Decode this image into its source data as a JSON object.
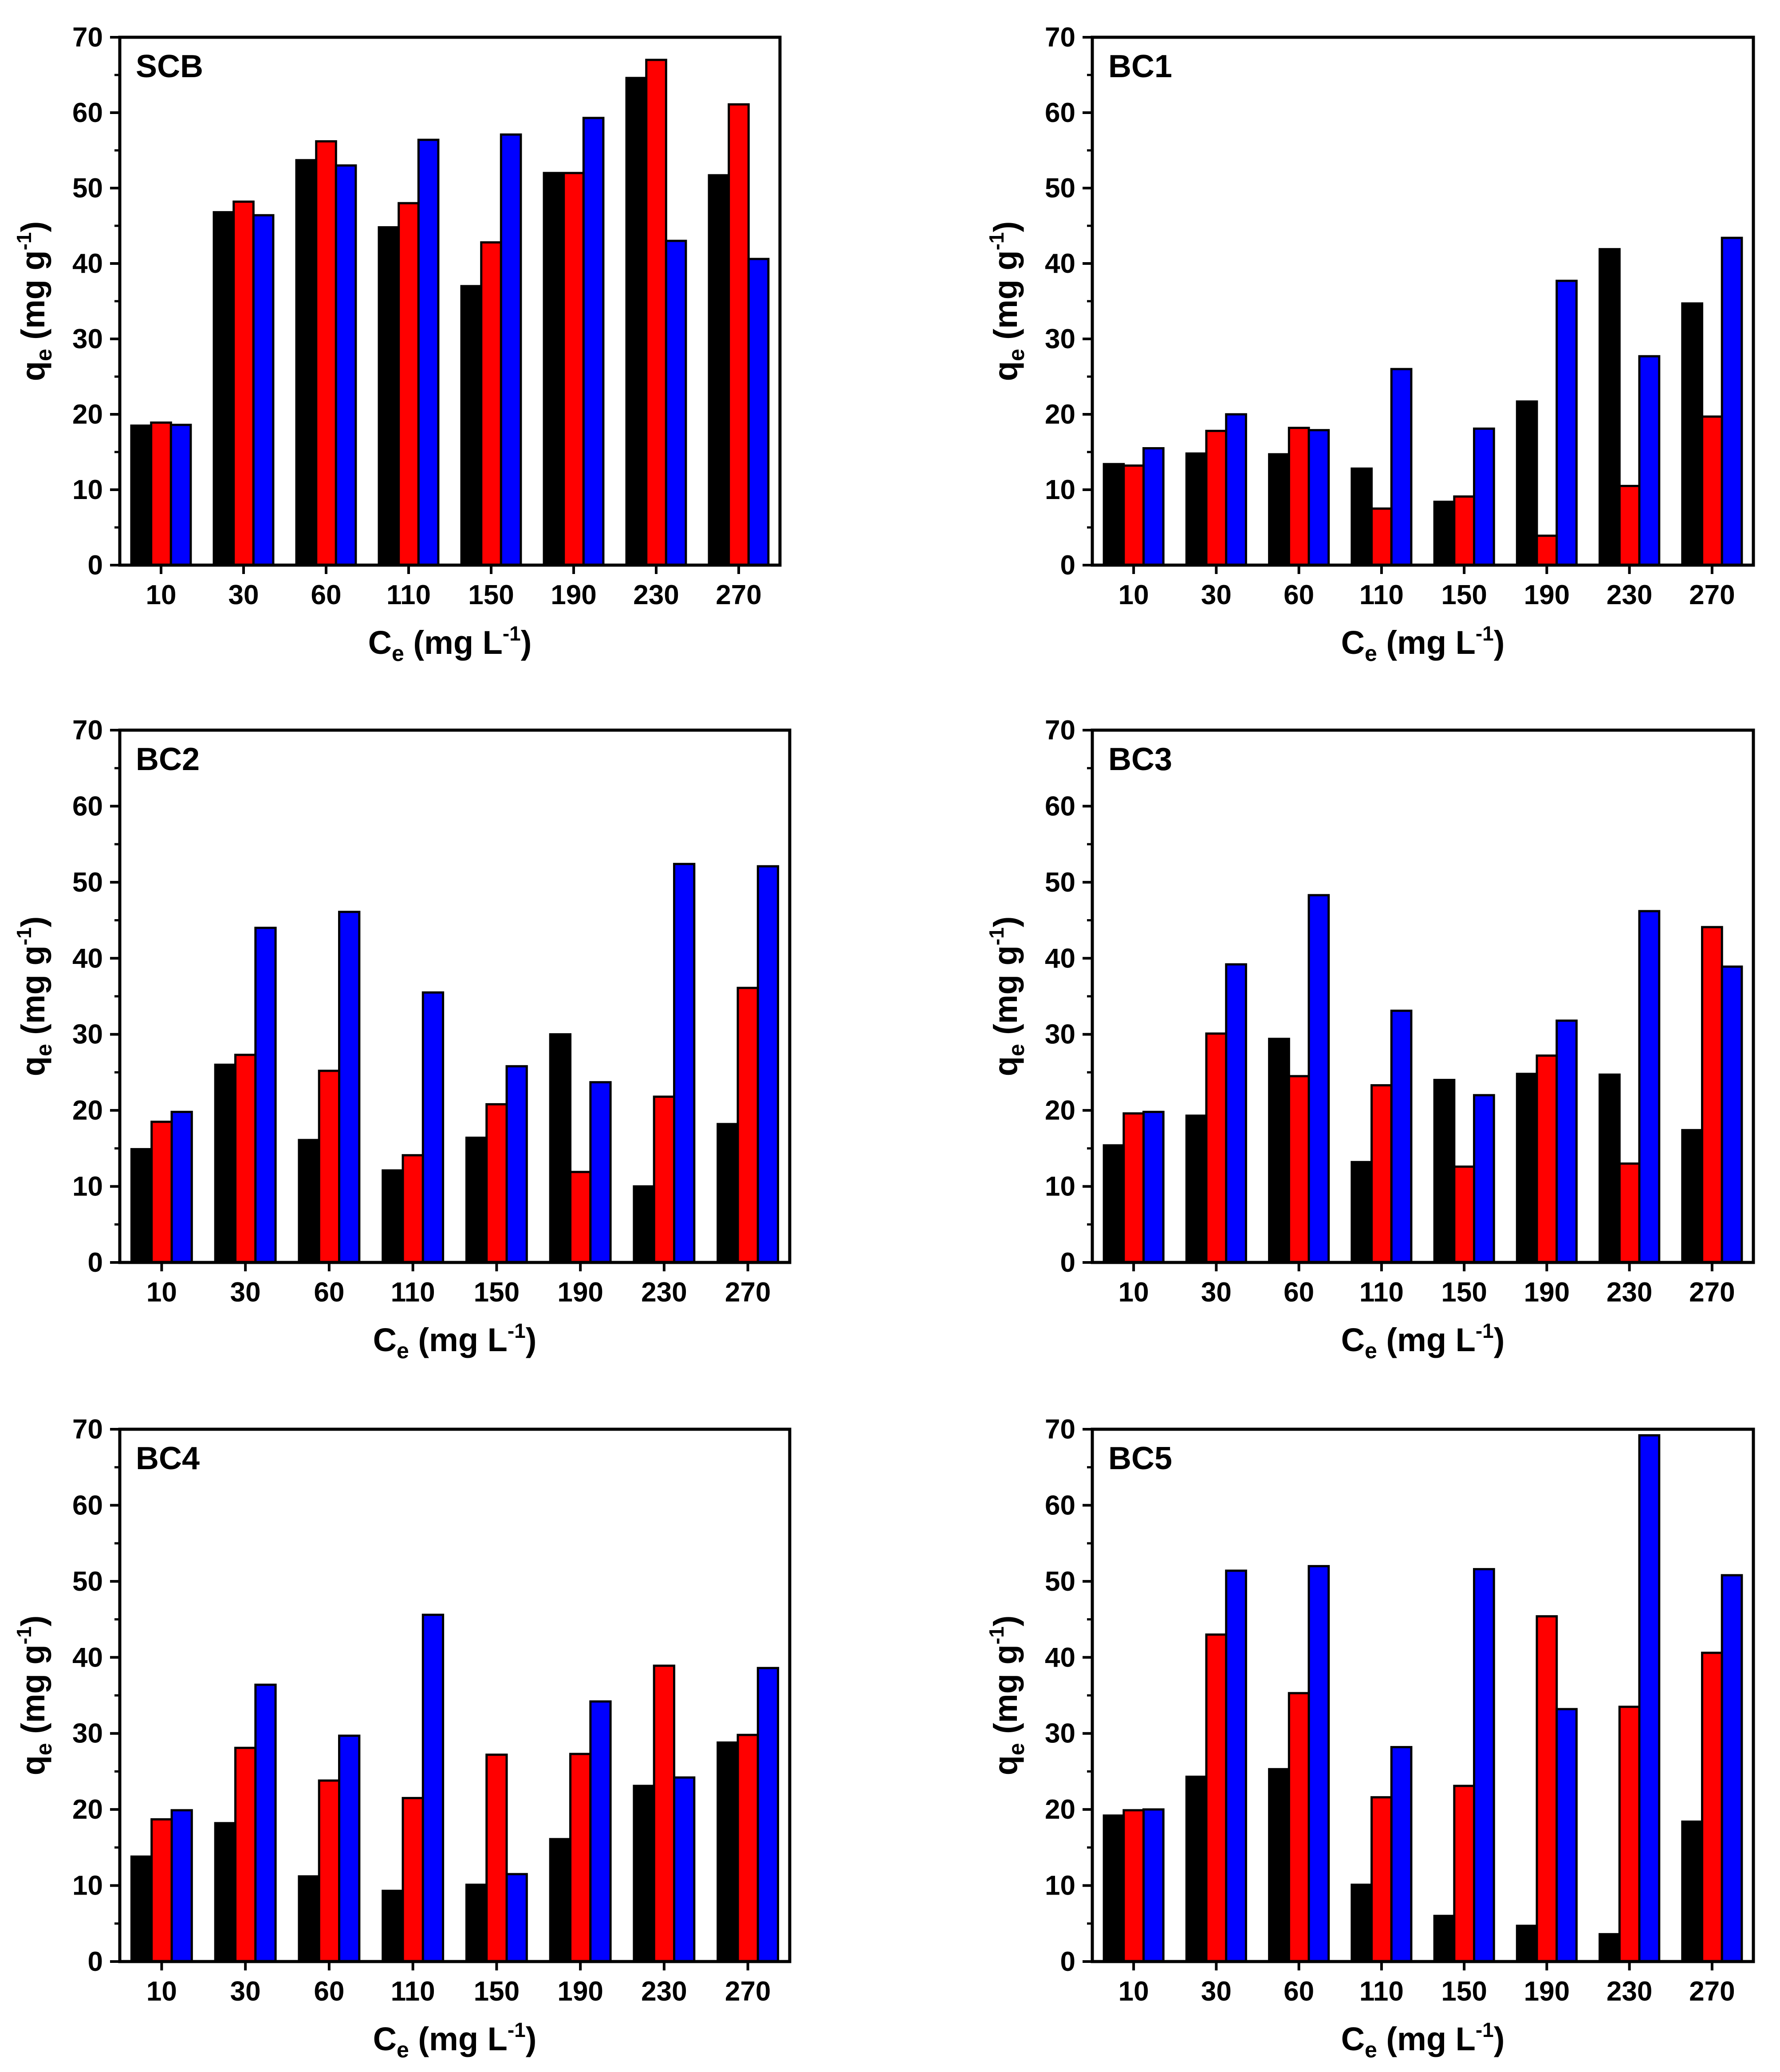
{
  "chart_data": [
    {
      "type": "bar",
      "title": "SCB",
      "categories": [
        "10",
        "30",
        "60",
        "110",
        "150",
        "190",
        "230",
        "270"
      ],
      "series": [
        {
          "name": "series-1",
          "color": "#000000",
          "values": [
            18.5,
            46.8,
            53.7,
            44.8,
            37.0,
            52.0,
            64.6,
            51.7
          ]
        },
        {
          "name": "series-2",
          "color": "#ff0000",
          "values": [
            18.9,
            48.2,
            56.2,
            48.0,
            42.8,
            52.0,
            67.0,
            61.1
          ]
        },
        {
          "name": "series-3",
          "color": "#0000ff",
          "values": [
            18.6,
            46.4,
            53.0,
            56.4,
            57.1,
            59.3,
            43.0,
            40.6
          ]
        }
      ],
      "ylim": [
        0,
        70
      ],
      "yticks": [
        "0",
        "10",
        "20",
        "30",
        "40",
        "50",
        "60",
        "70"
      ],
      "xlabel": {
        "main": "C",
        "sub": "e",
        "unit_pre": " (mg L",
        "sup": "-1",
        "unit_post": ")"
      },
      "ylabel": {
        "main": "q",
        "sub": "e",
        "unit_pre": " (mg g",
        "sup": "-1",
        "unit_post": ")"
      }
    },
    {
      "type": "bar",
      "title": "BC1",
      "categories": [
        "10",
        "30",
        "60",
        "110",
        "150",
        "190",
        "230",
        "270"
      ],
      "series": [
        {
          "name": "series-1",
          "color": "#000000",
          "values": [
            13.4,
            14.8,
            14.7,
            12.8,
            8.4,
            21.7,
            41.9,
            34.7
          ]
        },
        {
          "name": "series-2",
          "color": "#ff0000",
          "values": [
            13.2,
            17.8,
            18.2,
            7.5,
            9.1,
            3.9,
            10.5,
            19.7
          ]
        },
        {
          "name": "series-3",
          "color": "#0000ff",
          "values": [
            15.5,
            20.0,
            17.9,
            26.0,
            18.1,
            37.7,
            27.7,
            43.4
          ]
        }
      ],
      "ylim": [
        0,
        70
      ],
      "yticks": [
        "0",
        "10",
        "20",
        "30",
        "40",
        "50",
        "60",
        "70"
      ],
      "xlabel": {
        "main": "C",
        "sub": "e",
        "unit_pre": " (mg L",
        "sup": "-1",
        "unit_post": ")"
      },
      "ylabel": {
        "main": "q",
        "sub": "e",
        "unit_pre": " (mg g",
        "sup": "-1",
        "unit_post": ")"
      }
    },
    {
      "type": "bar",
      "title": "BC2",
      "categories": [
        "10",
        "30",
        "60",
        "110",
        "150",
        "190",
        "230",
        "270"
      ],
      "series": [
        {
          "name": "series-1",
          "color": "#000000",
          "values": [
            14.9,
            26.0,
            16.1,
            12.1,
            16.4,
            30.0,
            10.0,
            18.2
          ]
        },
        {
          "name": "series-2",
          "color": "#ff0000",
          "values": [
            18.5,
            27.3,
            25.2,
            14.1,
            20.8,
            11.9,
            21.8,
            36.1
          ]
        },
        {
          "name": "series-3",
          "color": "#0000ff",
          "values": [
            19.8,
            44.0,
            46.1,
            35.5,
            25.8,
            23.7,
            52.4,
            52.1
          ]
        }
      ],
      "ylim": [
        0,
        70
      ],
      "yticks": [
        "0",
        "10",
        "20",
        "30",
        "40",
        "50",
        "60",
        "70"
      ],
      "xlabel": {
        "main": "C",
        "sub": "e",
        "unit_pre": " (mg L",
        "sup": "-1",
        "unit_post": ")"
      },
      "ylabel": {
        "main": "q",
        "sub": "e",
        "unit_pre": " (mg g",
        "sup": "-1",
        "unit_post": ")"
      }
    },
    {
      "type": "bar",
      "title": "BC3",
      "categories": [
        "10",
        "30",
        "60",
        "110",
        "150",
        "190",
        "230",
        "270"
      ],
      "series": [
        {
          "name": "series-1",
          "color": "#000000",
          "values": [
            15.4,
            19.3,
            29.4,
            13.2,
            24.0,
            24.8,
            24.7,
            17.4
          ]
        },
        {
          "name": "series-2",
          "color": "#ff0000",
          "values": [
            19.6,
            30.1,
            24.5,
            23.3,
            12.6,
            27.2,
            13.0,
            44.1
          ]
        },
        {
          "name": "series-3",
          "color": "#0000ff",
          "values": [
            19.8,
            39.2,
            48.3,
            33.1,
            22.0,
            31.8,
            46.2,
            38.9
          ]
        }
      ],
      "ylim": [
        0,
        70
      ],
      "yticks": [
        "0",
        "10",
        "20",
        "30",
        "40",
        "50",
        "60",
        "70"
      ],
      "xlabel": {
        "main": "C",
        "sub": "e",
        "unit_pre": " (mg L",
        "sup": "-1",
        "unit_post": ")"
      },
      "ylabel": {
        "main": "q",
        "sub": "e",
        "unit_pre": " (mg g",
        "sup": "-1",
        "unit_post": ")"
      }
    },
    {
      "type": "bar",
      "title": "BC4",
      "categories": [
        "10",
        "30",
        "60",
        "110",
        "150",
        "190",
        "230",
        "270"
      ],
      "series": [
        {
          "name": "series-1",
          "color": "#000000",
          "values": [
            13.8,
            18.2,
            11.2,
            9.3,
            10.1,
            16.1,
            23.1,
            28.8
          ]
        },
        {
          "name": "series-2",
          "color": "#ff0000",
          "values": [
            18.7,
            28.1,
            23.8,
            21.5,
            27.2,
            27.3,
            38.9,
            29.8
          ]
        },
        {
          "name": "series-3",
          "color": "#0000ff",
          "values": [
            19.9,
            36.4,
            29.7,
            45.6,
            11.5,
            34.2,
            24.2,
            38.6
          ]
        }
      ],
      "ylim": [
        0,
        70
      ],
      "yticks": [
        "0",
        "10",
        "20",
        "30",
        "40",
        "50",
        "60",
        "70"
      ],
      "xlabel": {
        "main": "C",
        "sub": "e",
        "unit_pre": " (mg L",
        "sup": "-1",
        "unit_post": ")"
      },
      "ylabel": {
        "main": "q",
        "sub": "e",
        "unit_pre": " (mg g",
        "sup": "-1",
        "unit_post": ")"
      }
    },
    {
      "type": "bar",
      "title": "BC5",
      "categories": [
        "10",
        "30",
        "60",
        "110",
        "150",
        "190",
        "230",
        "270"
      ],
      "series": [
        {
          "name": "series-1",
          "color": "#000000",
          "values": [
            19.2,
            24.3,
            25.3,
            10.1,
            6.0,
            4.7,
            3.6,
            18.4
          ]
        },
        {
          "name": "series-2",
          "color": "#ff0000",
          "values": [
            19.9,
            43.0,
            35.3,
            21.6,
            23.1,
            45.4,
            33.5,
            40.6
          ]
        },
        {
          "name": "series-3",
          "color": "#0000ff",
          "values": [
            20.0,
            51.4,
            52.0,
            28.2,
            51.6,
            33.2,
            69.2,
            50.8
          ]
        }
      ],
      "ylim": [
        0,
        70
      ],
      "yticks": [
        "0",
        "10",
        "20",
        "30",
        "40",
        "50",
        "60",
        "70"
      ],
      "xlabel": {
        "main": "C",
        "sub": "e",
        "unit_pre": " (mg L",
        "sup": "-1",
        "unit_post": ")"
      },
      "ylabel": {
        "main": "q",
        "sub": "e",
        "unit_pre": " (mg g",
        "sup": "-1",
        "unit_post": ")"
      }
    }
  ]
}
